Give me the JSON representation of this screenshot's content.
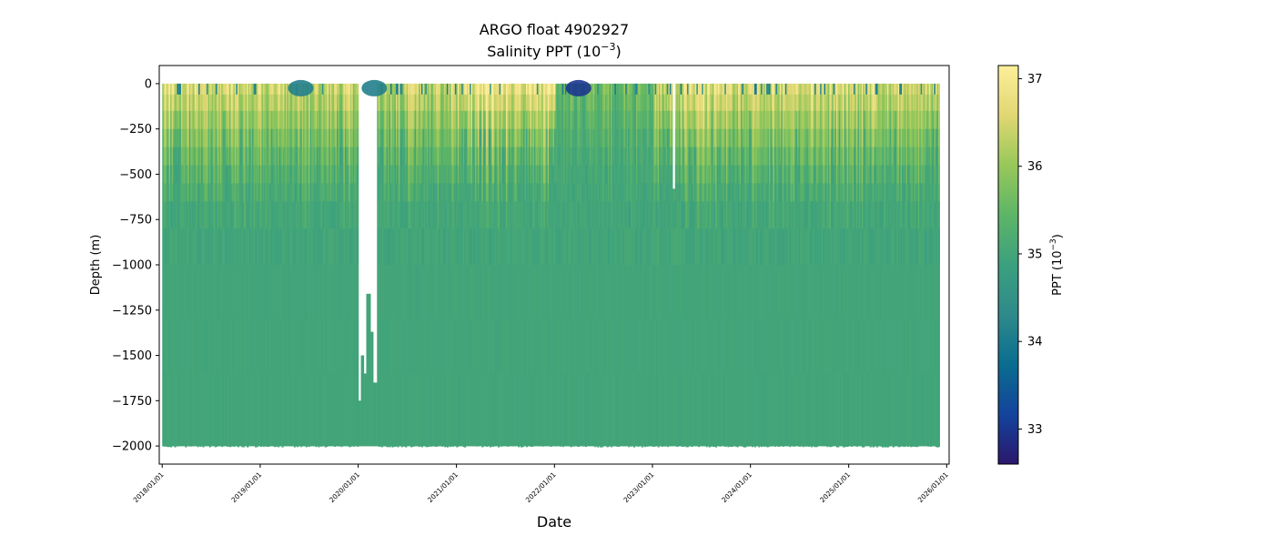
{
  "chart_data": {
    "type": "heatmap",
    "title": "ARGO float 4902927",
    "subtitle_main": "Salinity PPT (10",
    "subtitle_sup": "−3",
    "subtitle_tail": ")",
    "xlabel": "Date",
    "ylabel": "Depth (m)",
    "xlim": [
      "2017-12-21",
      "2026-01-10"
    ],
    "ylim": [
      -2100,
      100
    ],
    "x_ticks": [
      "2018/01/01",
      "2019/01/01",
      "2020/01/01",
      "2021/01/01",
      "2022/01/01",
      "2023/01/01",
      "2024/01/01",
      "2025/01/01",
      "2026/01/01"
    ],
    "y_ticks": [
      0,
      -250,
      -500,
      -750,
      -1000,
      -1250,
      -1500,
      -1750,
      -2000
    ],
    "y_tick_labels": [
      "0",
      "−250",
      "−500",
      "−750",
      "−1000",
      "−1250",
      "−1500",
      "−1750",
      "−2000"
    ],
    "data_start": "2018-01-01",
    "data_end": "2025-12-01",
    "profile_max_depth": -2000,
    "gaps": [
      {
        "start": "2020-01-01",
        "end": "2020-01-07",
        "bottom_depth": -1750
      },
      {
        "start": "2020-01-07",
        "end": "2020-01-18",
        "bottom_depth": -1500
      },
      {
        "start": "2020-01-18",
        "end": "2020-01-30",
        "bottom_depth": -1600
      },
      {
        "start": "2020-01-30",
        "end": "2020-02-11",
        "bottom_depth": -1160
      },
      {
        "start": "2020-02-11",
        "end": "2020-02-25",
        "bottom_depth": -1370
      },
      {
        "start": "2020-02-25",
        "end": "2020-03-10",
        "bottom_depth": -1650
      },
      {
        "start": "2023-03-15",
        "end": "2023-03-25",
        "bottom_depth": -580
      }
    ],
    "surface_salinity_by_year": [
      {
        "year": "2018",
        "value": 36.7
      },
      {
        "year": "2019",
        "value": 36.5
      },
      {
        "year": "2020",
        "value": 36.4
      },
      {
        "year": "2021",
        "value": 36.9
      },
      {
        "year": "2022",
        "value": 35.6
      },
      {
        "year": "2023",
        "value": 36.7
      },
      {
        "year": "2024",
        "value": 36.6
      },
      {
        "year": "2025",
        "value": 36.6
      }
    ],
    "deep_salinity": 35.0,
    "fresh_surface_events": [
      {
        "date": "2022-04-01",
        "value": 33.0
      },
      {
        "date": "2019-06-01",
        "value": 34.1
      },
      {
        "date": "2020-03-01",
        "value": 34.1
      }
    ],
    "colorbar": {
      "label_main": "PPT (10",
      "label_sup": "−3",
      "label_tail": ")",
      "min": 32.6,
      "max": 37.15,
      "ticks": [
        "33",
        "34",
        "35",
        "36",
        "37"
      ],
      "colormap": "haline",
      "colors": [
        "#2a186c",
        "#14439c",
        "#0a6d8f",
        "#2e8a8b",
        "#3ba07e",
        "#5db567",
        "#98c85a",
        "#e0d773",
        "#fdef9a"
      ]
    },
    "grid": false,
    "legend": "none"
  }
}
